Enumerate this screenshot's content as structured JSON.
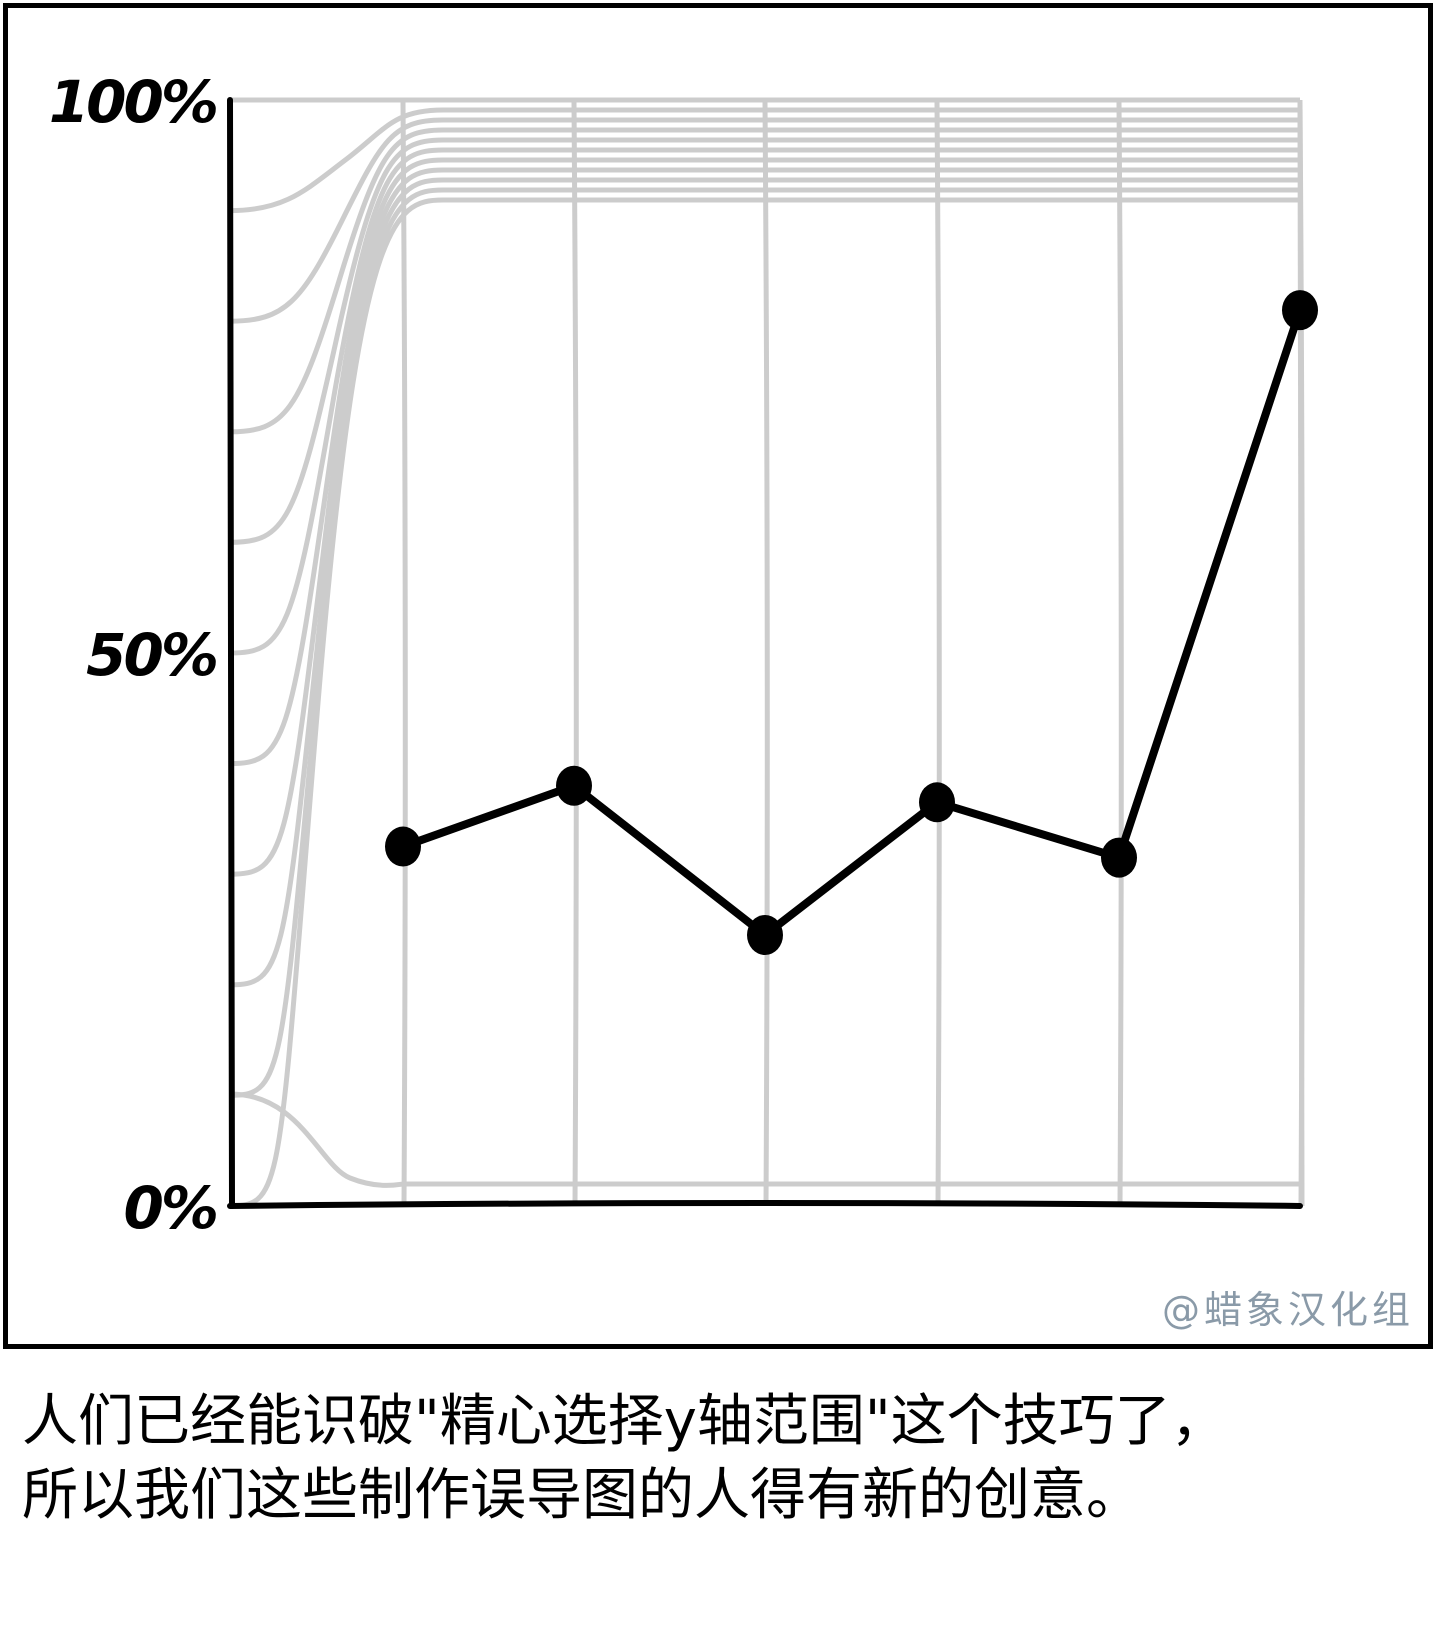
{
  "chart_data": {
    "type": "line",
    "x": [
      1,
      2,
      3,
      4,
      5,
      6
    ],
    "values": [
      32.5,
      38,
      24.5,
      36.5,
      31.5,
      81
    ],
    "ylim": [
      0,
      100
    ],
    "yticks": [
      "0%",
      "50%",
      "100%"
    ],
    "grid": "on",
    "line_color": "#000000",
    "grid_color": "#cccccc"
  },
  "watermark": "@蜡象汉化组",
  "caption": {
    "line1": "人们已经能识破\"精心选择y轴范围\"这个技巧了，",
    "line2": "所以我们这些制作误导图的人得有新的创意。"
  }
}
